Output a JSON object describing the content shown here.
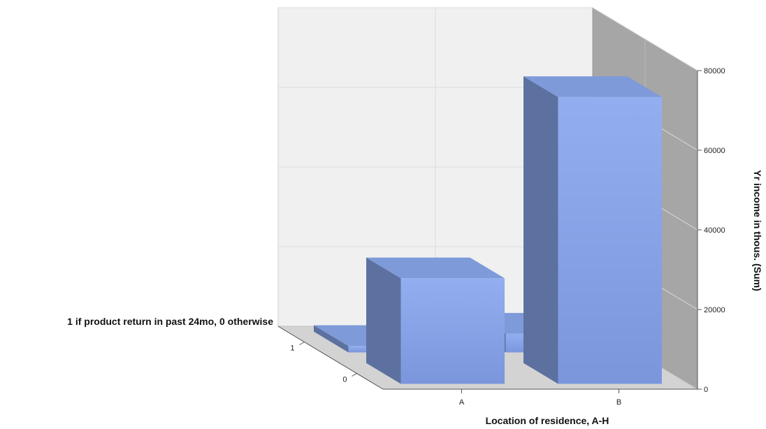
{
  "chart_data": {
    "type": "bar",
    "subtype": "3d",
    "x": {
      "label": "Location of residence, A-H",
      "categories": [
        "A",
        "B"
      ]
    },
    "z": {
      "label": "1 if product return in past 24mo, 0 otherwise",
      "categories": [
        "0",
        "1"
      ]
    },
    "y": {
      "label": "Yr income in thous. (Sum)",
      "ticks": [
        0,
        20000,
        40000,
        60000,
        80000
      ],
      "tick_labels": [
        "0",
        "20000",
        "40000",
        "60000",
        "80000"
      ],
      "ylim": [
        0,
        80000
      ]
    },
    "series": [
      {
        "return": "0",
        "values": [
          26500,
          72000
        ]
      },
      {
        "return": "1",
        "values": [
          1600,
          4700
        ]
      }
    ],
    "grid": true,
    "colors": {
      "bar_front": "#93aef0",
      "bar_front_bottom": "#7b96dc",
      "bar_top": "#7f9ad9",
      "bar_side": "#5c719f",
      "back_wall": "#f0f0f0",
      "side_wall": "#a6a6a6",
      "floor": "#d3d3d3",
      "grid_line": "#dcdcdc"
    }
  }
}
